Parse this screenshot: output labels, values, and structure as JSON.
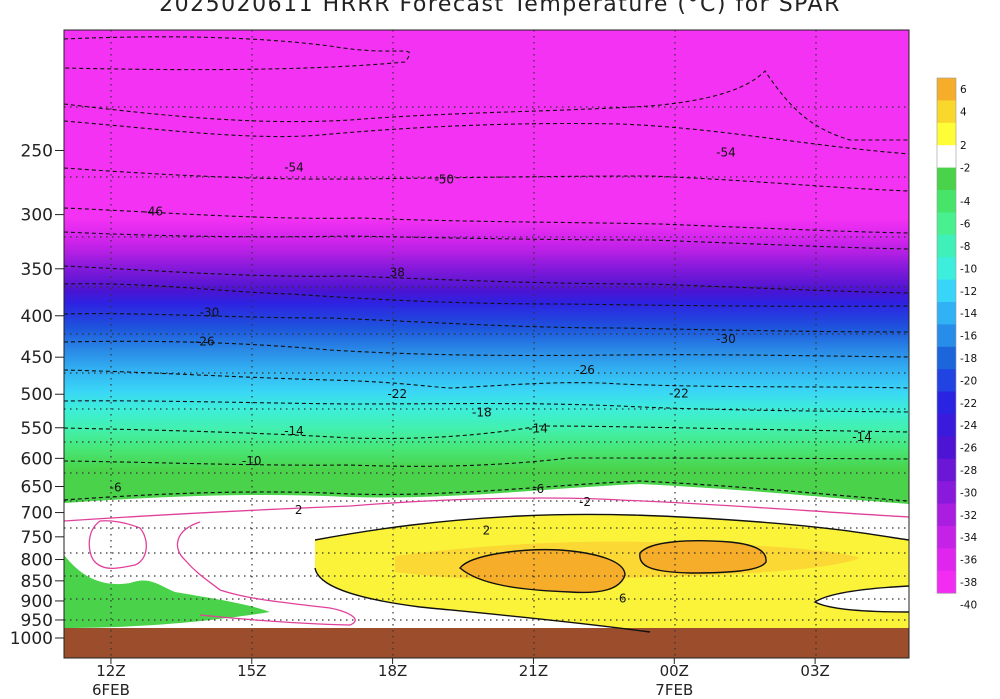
{
  "title": "2025020611 HRRR Forecast Temperature (°C) for SPAR",
  "chart_data": {
    "type": "heatmap",
    "title": "2025020611 HRRR Forecast Temperature (°C) for SPAR",
    "xlabel": "",
    "ylabel": "",
    "grid": true,
    "y_scale": "log-pressure",
    "y_levels_hPa": [
      250,
      300,
      350,
      400,
      450,
      500,
      550,
      600,
      650,
      700,
      750,
      800,
      850,
      900,
      950,
      1000
    ],
    "ylim_hPa": [
      1000,
      200
    ],
    "x_ticks": [
      "12Z",
      "15Z",
      "18Z",
      "21Z",
      "00Z",
      "03Z"
    ],
    "x_tick_days": {
      "12Z": "6FEB",
      "00Z": "7FEB"
    },
    "x_hours": [
      0,
      3,
      6,
      9,
      12,
      15
    ],
    "xlim_hours": [
      -1,
      17
    ],
    "contour_labels": [
      {
        "v": "-54",
        "t": 3.9,
        "p": 262
      },
      {
        "v": "-54",
        "t": 13.1,
        "p": 251
      },
      {
        "v": "-50",
        "t": 7.1,
        "p": 271
      },
      {
        "v": "-46",
        "t": 0.9,
        "p": 297
      },
      {
        "v": "38",
        "t": 6.1,
        "p": 353
      },
      {
        "v": "-30",
        "t": 2.1,
        "p": 396
      },
      {
        "v": "-30",
        "t": 13.1,
        "p": 427
      },
      {
        "v": "-26",
        "t": 2.0,
        "p": 430
      },
      {
        "v": "-26",
        "t": 10.1,
        "p": 466
      },
      {
        "v": "-22",
        "t": 6.1,
        "p": 499
      },
      {
        "v": "-22",
        "t": 12.1,
        "p": 498
      },
      {
        "v": "-18",
        "t": 7.9,
        "p": 526
      },
      {
        "v": "-14",
        "t": 3.9,
        "p": 554
      },
      {
        "v": "-14",
        "t": 9.1,
        "p": 550
      },
      {
        "v": "-14",
        "t": 16.0,
        "p": 564
      },
      {
        "v": "-10",
        "t": 3.0,
        "p": 604
      },
      {
        "v": "-6",
        "t": 0.1,
        "p": 651
      },
      {
        "v": "-6",
        "t": 9.1,
        "p": 654
      },
      {
        "v": "2",
        "t": 4.0,
        "p": 694
      },
      {
        "v": "-2",
        "t": 10.1,
        "p": 678
      },
      {
        "v": "2",
        "t": 8.0,
        "p": 736
      },
      {
        "v": "6",
        "t": 10.9,
        "p": 893
      }
    ],
    "colorbar": {
      "labels": [
        "6",
        "4",
        "2",
        "-2",
        "-4",
        "-6",
        "-8",
        "-10",
        "-12",
        "-14",
        "-16",
        "-18",
        "-20",
        "-22",
        "-24",
        "-26",
        "-28",
        "-30",
        "-32",
        "-34",
        "-36",
        "-38",
        "-40"
      ],
      "colors": [
        "#f5ad2a",
        "#f9d72d",
        "#fefd38",
        "#ffffff",
        "#4ad34a",
        "#46e569",
        "#48f090",
        "#3ff0b8",
        "#3deedd",
        "#39d5f8",
        "#30b2f4",
        "#288de8",
        "#1d65da",
        "#2043e2",
        "#2a24e2",
        "#3a1adb",
        "#4e14d3",
        "#6c17d6",
        "#8a1adb",
        "#a91ee1",
        "#c522e8",
        "#e026ee",
        "#f22cf3"
      ]
    },
    "field_colors": {
      "stratosphere": "#f432f3",
      "ground": "#9b4d2c",
      "freezing_line": "#e0409a"
    }
  }
}
